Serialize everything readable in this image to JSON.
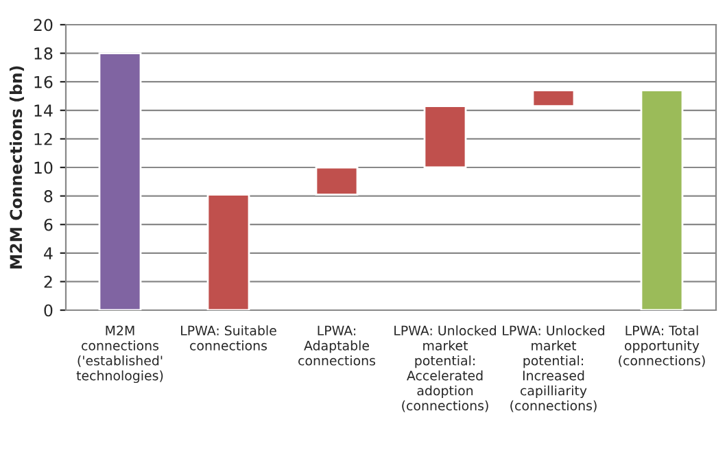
{
  "chart_data": {
    "type": "bar",
    "ylabel": "M2M Connections (bn)",
    "categories": [
      "M2M\nconnections\n('established'\ntechnologies)",
      "LPWA: Suitable\nconnections",
      "LPWA:\nAdaptable\nconnections",
      "LPWA: Unlocked\nmarket\npotential:\nAccelerated\nadoption\n(connections)",
      "LPWA: Unlocked\nmarket\npotential:\nIncreased\ncapilliarity\n(connections)",
      "LPWA: Total\nopportunity\n(connections)"
    ],
    "values": [
      18,
      8.1,
      1.9,
      4.3,
      1.1,
      15.4
    ],
    "base": [
      0,
      0,
      8.1,
      10,
      14.3,
      0
    ],
    "colors": [
      "#8064a2",
      "#c0504d",
      "#c0504d",
      "#c0504d",
      "#c0504d",
      "#9bbb59"
    ],
    "ylim": [
      0,
      20
    ],
    "yticks": [
      0,
      2,
      4,
      6,
      8,
      10,
      12,
      14,
      16,
      18,
      20
    ],
    "grid": "y",
    "legend": false
  }
}
